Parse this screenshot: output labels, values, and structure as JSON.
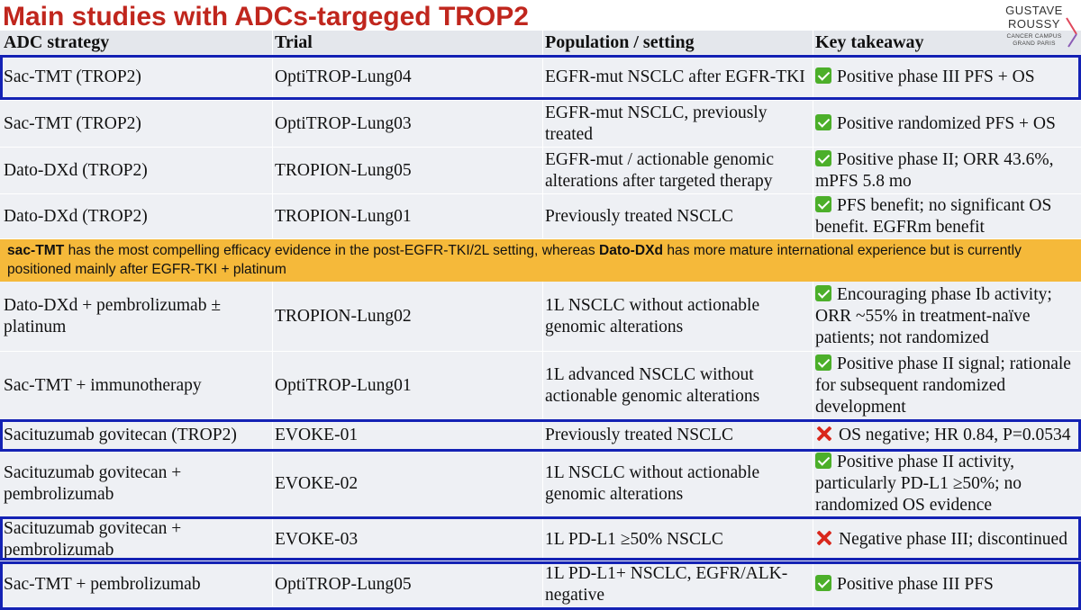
{
  "title": "Main studies with ADCs-targeged TROP2",
  "logo": {
    "line1": "GUSTAVE",
    "line2": "ROUSSY",
    "line3": "CANCER CAMPUS",
    "line4": "GRAND PARIS"
  },
  "colors": {
    "title": "#c0261d",
    "highlight_box": "#1422b4",
    "banner": "#f5b93a",
    "positive_icon": "#4caf2a",
    "negative_icon": "#d9271c"
  },
  "columns": [
    "ADC strategy",
    "Trial",
    "Population / setting",
    "Key takeaway"
  ],
  "rows_top": [
    {
      "strategy": "Sac-TMT (TROP2)",
      "trial": "OptiTROP-Lung04",
      "population": "EGFR-mut NSCLC after EGFR-TKI",
      "result_icon": "check-mark-icon",
      "takeaway": "Positive phase III PFS + OS"
    },
    {
      "strategy": "Sac-TMT (TROP2)",
      "trial": "OptiTROP-Lung03",
      "population": "EGFR-mut NSCLC, previously treated",
      "result_icon": "check-mark-icon",
      "takeaway": "Positive randomized PFS + OS"
    },
    {
      "strategy": "Dato-DXd (TROP2)",
      "trial": "TROPION-Lung05",
      "population": "EGFR-mut / actionable genomic alterations after targeted therapy",
      "result_icon": "check-mark-icon",
      "takeaway": "Positive phase II; ORR 43.6%, mPFS 5.8 mo"
    },
    {
      "strategy": "Dato-DXd (TROP2)",
      "trial": "TROPION-Lung01",
      "population": "Previously treated NSCLC",
      "result_icon": "check-mark-icon",
      "takeaway": "PFS benefit; no significant OS benefit. EGFRm benefit"
    }
  ],
  "banner": {
    "bold1": "sac-TMT",
    "text1": " has the most compelling efficacy evidence in the post-EGFR-TKI/2L setting, whereas ",
    "bold2": "Dato-DXd",
    "text2": " has more mature international experience but is currently positioned mainly after EGFR-TKI + platinum"
  },
  "rows_bottom": [
    {
      "strategy": "Dato-DXd + pembrolizumab ± platinum",
      "trial": "TROPION-Lung02",
      "population": "1L NSCLC without actionable genomic alterations",
      "result_icon": "check-mark-icon",
      "takeaway": "Encouraging phase Ib activity; ORR ~55% in treatment-naïve patients; not randomized"
    },
    {
      "strategy": "Sac-TMT + immunotherapy",
      "trial": "OptiTROP-Lung01",
      "population": "1L advanced NSCLC without actionable genomic alterations",
      "result_icon": "check-mark-icon",
      "takeaway": "Positive phase II signal; rationale for subsequent randomized development"
    },
    {
      "strategy": "Sacituzumab govitecan (TROP2)",
      "trial": "EVOKE-01",
      "population": "Previously treated NSCLC",
      "result_icon": "cross-mark-icon",
      "takeaway": "OS negative; HR 0.84, P=0.0534"
    },
    {
      "strategy": "Sacituzumab govitecan + pembrolizumab",
      "trial": "EVOKE-02",
      "population": "1L NSCLC without actionable genomic alterations",
      "result_icon": "check-mark-icon",
      "takeaway": "Positive phase II activity, particularly PD-L1 ≥50%; no randomized OS evidence"
    },
    {
      "strategy": "Sacituzumab govitecan + pembrolizumab",
      "trial": "EVOKE-03",
      "population": "1L PD-L1 ≥50% NSCLC",
      "result_icon": "cross-mark-icon",
      "takeaway": "Negative phase III; discontinued"
    },
    {
      "strategy": "Sac-TMT + pembrolizumab",
      "trial": "OptiTROP-Lung05",
      "population": "1L PD-L1+ NSCLC, EGFR/ALK-negative",
      "result_icon": "check-mark-icon",
      "takeaway": "Positive phase III PFS"
    }
  ]
}
